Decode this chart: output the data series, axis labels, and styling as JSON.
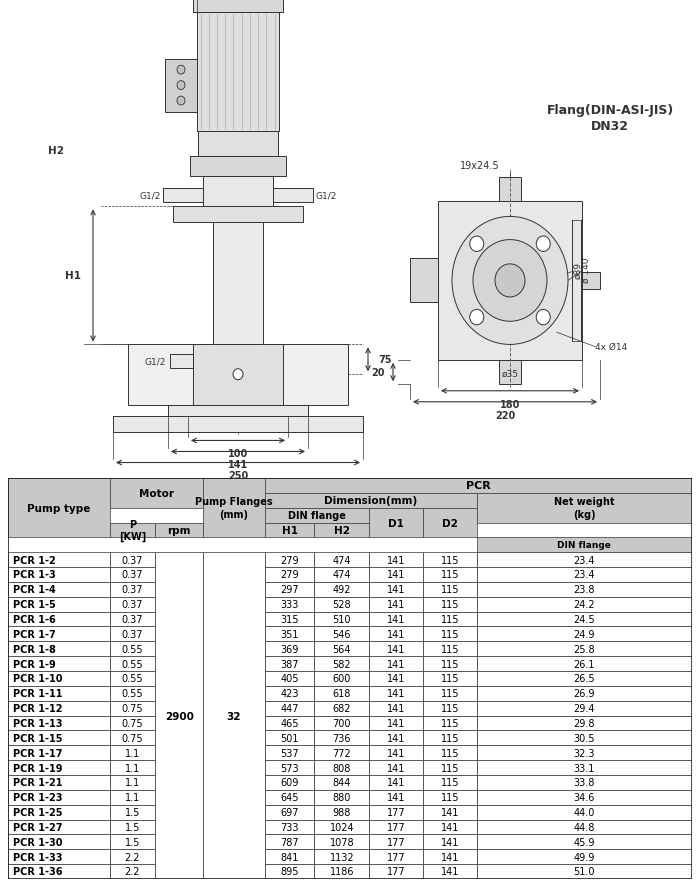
{
  "rows": [
    [
      "PCR 1-2",
      "0.37",
      "279",
      "474",
      "141",
      "115",
      "23.4"
    ],
    [
      "PCR 1-3",
      "0.37",
      "279",
      "474",
      "141",
      "115",
      "23.4"
    ],
    [
      "PCR 1-4",
      "0.37",
      "297",
      "492",
      "141",
      "115",
      "23.8"
    ],
    [
      "PCR 1-5",
      "0.37",
      "333",
      "528",
      "141",
      "115",
      "24.2"
    ],
    [
      "PCR 1-6",
      "0.37",
      "315",
      "510",
      "141",
      "115",
      "24.5"
    ],
    [
      "PCR 1-7",
      "0.37",
      "351",
      "546",
      "141",
      "115",
      "24.9"
    ],
    [
      "PCR 1-8",
      "0.55",
      "369",
      "564",
      "141",
      "115",
      "25.8"
    ],
    [
      "PCR 1-9",
      "0.55",
      "387",
      "582",
      "141",
      "115",
      "26.1"
    ],
    [
      "PCR 1-10",
      "0.55",
      "405",
      "600",
      "141",
      "115",
      "26.5"
    ],
    [
      "PCR 1-11",
      "0.55",
      "423",
      "618",
      "141",
      "115",
      "26.9"
    ],
    [
      "PCR 1-12",
      "0.75",
      "447",
      "682",
      "141",
      "115",
      "29.4"
    ],
    [
      "PCR 1-13",
      "0.75",
      "465",
      "700",
      "141",
      "115",
      "29.8"
    ],
    [
      "PCR 1-15",
      "0.75",
      "501",
      "736",
      "141",
      "115",
      "30.5"
    ],
    [
      "PCR 1-17",
      "1.1",
      "537",
      "772",
      "141",
      "115",
      "32.3"
    ],
    [
      "PCR 1-19",
      "1.1",
      "573",
      "808",
      "141",
      "115",
      "33.1"
    ],
    [
      "PCR 1-21",
      "1.1",
      "609",
      "844",
      "141",
      "115",
      "33.8"
    ],
    [
      "PCR 1-23",
      "1.1",
      "645",
      "880",
      "141",
      "115",
      "34.6"
    ],
    [
      "PCR 1-25",
      "1.5",
      "697",
      "988",
      "177",
      "141",
      "44.0"
    ],
    [
      "PCR 1-27",
      "1.5",
      "733",
      "1024",
      "177",
      "141",
      "44.8"
    ],
    [
      "PCR 1-30",
      "1.5",
      "787",
      "1078",
      "177",
      "141",
      "45.9"
    ],
    [
      "PCR 1-33",
      "2.2",
      "841",
      "1132",
      "177",
      "141",
      "49.9"
    ],
    [
      "PCR 1-36",
      "2.2",
      "895",
      "1186",
      "177",
      "141",
      "51.0"
    ]
  ],
  "rpm": "2900",
  "flanges": "32",
  "bg_color": "#ffffff",
  "line_color": "#333333",
  "header_bg": "#c8c8c8",
  "flange_text_line1": "Flang(DIN-ASI-JIS)",
  "flange_text_line2": "DN32"
}
